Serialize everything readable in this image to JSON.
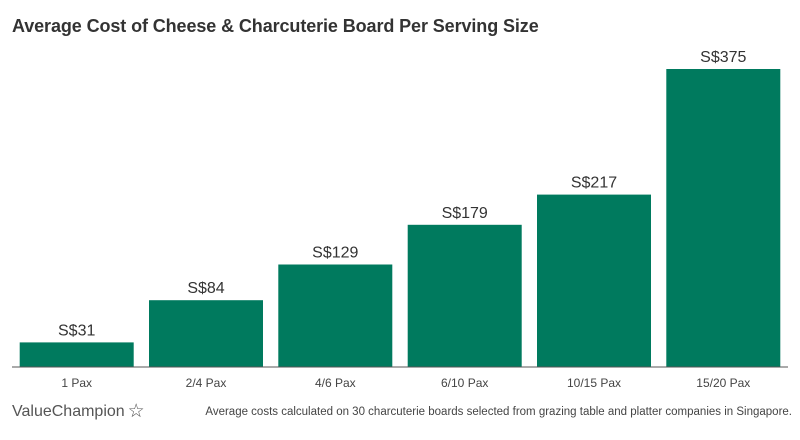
{
  "chart_data": {
    "type": "bar",
    "title": "Average Cost of Cheese & Charcuterie Board Per Serving Size",
    "categories": [
      "1 Pax",
      "2/4 Pax",
      "4/6 Pax",
      "6/10 Pax",
      "10/15 Pax",
      "15/20 Pax"
    ],
    "values": [
      31,
      84,
      129,
      179,
      217,
      375
    ],
    "data_labels": [
      "S$31",
      "S$84",
      "S$129",
      "S$179",
      "S$217",
      "S$375"
    ],
    "xlabel": "",
    "ylabel": "",
    "ylim": [
      0,
      400
    ],
    "grid": false,
    "legend": "none",
    "bar_color": "#007a5e"
  },
  "footer": {
    "brand": "ValueChampion",
    "brand_icon": "star-outline-icon",
    "note": "Average costs calculated on 30 charcuterie boards selected from grazing table and platter companies in Singapore."
  }
}
